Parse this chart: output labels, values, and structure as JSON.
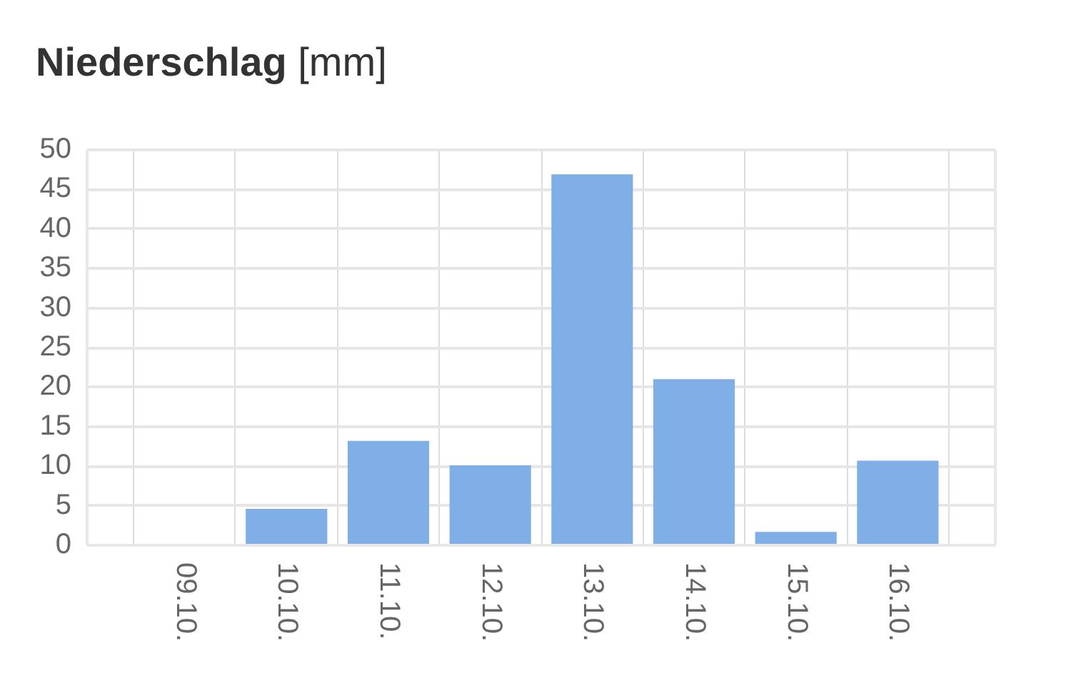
{
  "chart_data": {
    "type": "bar",
    "title": "Niederschlag [mm]",
    "categories": [
      "09.10.",
      "10.10.",
      "11.10.",
      "12.10.",
      "13.10.",
      "14.10.",
      "15.10.",
      "16.10."
    ],
    "values": [
      0,
      4.6,
      13.2,
      10.1,
      46.9,
      21.0,
      1.7,
      10.7
    ],
    "color": "#80aee6",
    "ylim": [
      0,
      50
    ],
    "yticks": [
      0,
      5,
      10,
      15,
      20,
      25,
      30,
      35,
      40,
      45,
      50
    ],
    "grid": true
  }
}
